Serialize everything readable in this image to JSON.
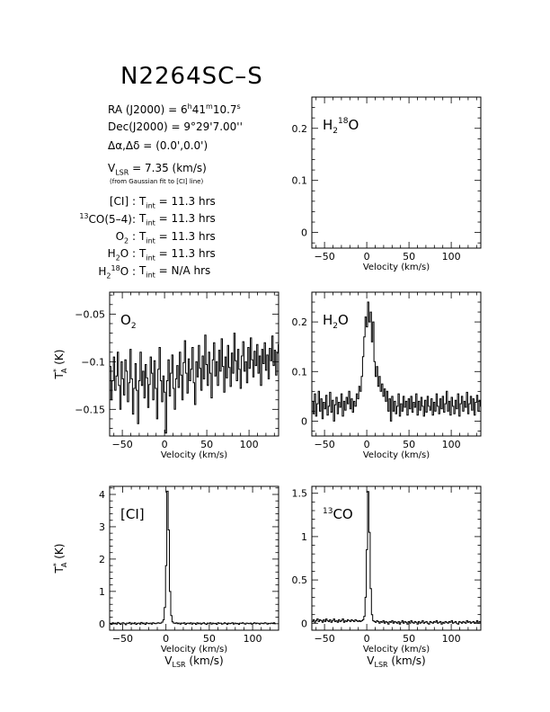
{
  "title": "N2264SC–S",
  "header_info": {
    "ra": {
      "label": "RA (J2000) =",
      "h": "6",
      "m": "41",
      "s": "10.7"
    },
    "dec": {
      "label": "Dec(J2000) =",
      "value": "9°29'7.00''"
    },
    "offset": {
      "label": "Δα,Δδ =",
      "value": "(0.0',0.0')"
    },
    "vlsr": {
      "label_main": "V",
      "label_sub": "LSR",
      "value": "= 7.35 (km/s)"
    },
    "vlsr_note": "(from Gaussian fit to [CI] line)",
    "integrations": [
      {
        "line": "[CI]",
        "tint": "11.3"
      },
      {
        "line": "13CO(5–4)",
        "tint": "11.3"
      },
      {
        "line": "O2",
        "tint": "11.3"
      },
      {
        "line": "H2O",
        "tint": "11.3"
      },
      {
        "line": "H2 18O",
        "tint": "N/A"
      }
    ],
    "tint_label": "T",
    "tint_sub": "int",
    "hrs": "hrs"
  },
  "axis_text": {
    "velocity": "Velocity (km/s)",
    "vlsr": "V",
    "vlsr_sub": "LSR",
    "vlsr_unit": "(km/s)",
    "ta": "T",
    "ta_sup": "*",
    "ta_sub": "A",
    "ta_unit": "(K)"
  },
  "chart_data": [
    {
      "id": "h218o",
      "type": "line",
      "label_main": "H",
      "label_sub": "2",
      "label_sup": "18",
      "label_tail": "O",
      "xlim": [
        -65,
        135
      ],
      "ylim": [
        -0.03,
        0.26
      ],
      "xticks": [
        -50,
        0,
        50,
        100
      ],
      "yticks": [
        0,
        0.1,
        0.2
      ],
      "xlabel": "Velocity (km/s)",
      "ylabel": "",
      "series": []
    },
    {
      "id": "o2",
      "type": "line",
      "label_main": "O",
      "label_sub": "2",
      "xlim": [
        -65,
        135
      ],
      "ylim": [
        -0.178,
        -0.027
      ],
      "xticks": [
        -50,
        0,
        50,
        100
      ],
      "yticks": [
        -0.15,
        -0.1,
        -0.05
      ],
      "xlabel": "Velocity (km/s)",
      "ylabel": "TA* (K)",
      "series": [
        {
          "x_start": -65,
          "x_step": 1.5,
          "values": [
            -0.105,
            -0.14,
            -0.12,
            -0.095,
            -0.13,
            -0.115,
            -0.09,
            -0.125,
            -0.15,
            -0.1,
            -0.118,
            -0.135,
            -0.098,
            -0.11,
            -0.142,
            -0.122,
            -0.087,
            -0.118,
            -0.155,
            -0.128,
            -0.102,
            -0.13,
            -0.165,
            -0.12,
            -0.09,
            -0.125,
            -0.11,
            -0.138,
            -0.103,
            -0.117,
            -0.148,
            -0.124,
            -0.095,
            -0.112,
            -0.14,
            -0.099,
            -0.128,
            -0.16,
            -0.108,
            -0.085,
            -0.12,
            -0.142,
            -0.115,
            -0.132,
            -0.175,
            -0.12,
            -0.098,
            -0.136,
            -0.112,
            -0.093,
            -0.128,
            -0.15,
            -0.118,
            -0.104,
            -0.127,
            -0.09,
            -0.114,
            -0.14,
            -0.101,
            -0.078,
            -0.112,
            -0.133,
            -0.097,
            -0.12,
            -0.108,
            -0.085,
            -0.122,
            -0.145,
            -0.1,
            -0.116,
            -0.083,
            -0.107,
            -0.13,
            -0.094,
            -0.118,
            -0.072,
            -0.103,
            -0.125,
            -0.09,
            -0.112,
            -0.138,
            -0.098,
            -0.08,
            -0.115,
            -0.1,
            -0.125,
            -0.088,
            -0.11,
            -0.076,
            -0.105,
            -0.132,
            -0.095,
            -0.117,
            -0.083,
            -0.106,
            -0.126,
            -0.091,
            -0.112,
            -0.07,
            -0.099,
            -0.12,
            -0.087,
            -0.108,
            -0.128,
            -0.094,
            -0.079,
            -0.11,
            -0.1,
            -0.122,
            -0.085,
            -0.107,
            -0.075,
            -0.098,
            -0.116,
            -0.089,
            -0.104,
            -0.082,
            -0.112,
            -0.094,
            -0.125,
            -0.087,
            -0.102,
            -0.08,
            -0.109,
            -0.093,
            -0.118,
            -0.086,
            -0.099,
            -0.073,
            -0.104,
            -0.088,
            -0.114,
            -0.091,
            -0.082,
            -0.106,
            -0.065
          ]
        }
      ]
    },
    {
      "id": "h2o",
      "type": "line",
      "label_main": "H",
      "label_sub": "2",
      "label_tail": "O",
      "xlim": [
        -65,
        135
      ],
      "ylim": [
        -0.03,
        0.26
      ],
      "xticks": [
        -50,
        0,
        50,
        100
      ],
      "yticks": [
        0,
        0.1,
        0.2
      ],
      "xlabel": "Velocity (km/s)",
      "ylabel": "",
      "series": [
        {
          "x_start": -65,
          "x_step": 1.5,
          "values": [
            0.04,
            0.015,
            0.055,
            0.01,
            0.035,
            0.06,
            0.02,
            0.045,
            0.005,
            0.038,
            0.025,
            0.052,
            0.012,
            0.03,
            0.058,
            0.018,
            0.042,
            0.0,
            0.033,
            0.048,
            0.015,
            0.038,
            0.028,
            0.055,
            0.01,
            0.04,
            0.022,
            0.048,
            0.035,
            0.06,
            0.025,
            0.045,
            0.018,
            0.04,
            0.03,
            0.055,
            0.045,
            0.07,
            0.06,
            0.09,
            0.13,
            0.17,
            0.21,
            0.19,
            0.24,
            0.2,
            0.22,
            0.16,
            0.2,
            0.12,
            0.09,
            0.11,
            0.07,
            0.09,
            0.06,
            0.075,
            0.05,
            0.065,
            0.04,
            0.06,
            0.02,
            0.045,
            0.0,
            0.05,
            0.02,
            0.04,
            0.015,
            0.03,
            0.055,
            0.01,
            0.035,
            0.02,
            0.05,
            0.028,
            0.04,
            0.012,
            0.045,
            0.025,
            0.05,
            0.018,
            0.038,
            0.028,
            0.055,
            0.012,
            0.04,
            0.022,
            0.048,
            0.03,
            0.01,
            0.042,
            0.018,
            0.05,
            0.03,
            0.022,
            0.045,
            0.012,
            0.038,
            0.02,
            0.055,
            0.03,
            0.015,
            0.045,
            0.025,
            0.05,
            0.018,
            0.035,
            0.06,
            0.02,
            0.04,
            0.012,
            0.048,
            0.03,
            0.015,
            0.042,
            0.025,
            0.055,
            0.01,
            0.035,
            0.05,
            0.02,
            0.04,
            0.028,
            0.058,
            0.015,
            0.035,
            0.05,
            0.022,
            0.045,
            0.012,
            0.038,
            0.052,
            0.02,
            0.042,
            0.03
          ]
        }
      ]
    },
    {
      "id": "ci",
      "type": "line",
      "label_main": "[CI]",
      "xlim": [
        -65,
        130
      ],
      "ylim": [
        -0.2,
        4.25
      ],
      "xticks": [
        -50,
        0,
        50,
        100
      ],
      "yticks": [
        0,
        1,
        2,
        3,
        4
      ],
      "xlabel": "Velocity (km/s)",
      "ylabel": "TA* (K)",
      "series": [
        {
          "x_start": -65,
          "x_step": 1.5,
          "values": [
            0.01,
            -0.02,
            0.03,
            0.0,
            0.02,
            -0.01,
            0.04,
            0.01,
            -0.02,
            0.02,
            0.03,
            0.0,
            -0.03,
            0.02,
            0.01,
            0.04,
            -0.01,
            0.02,
            0.0,
            0.03,
            -0.02,
            0.01,
            0.02,
            -0.01,
            0.04,
            0.0,
            0.02,
            -0.02,
            0.03,
            0.01,
            0.0,
            0.02,
            -0.01,
            0.03,
            0.01,
            0.0,
            0.02,
            0.03,
            0.01,
            0.02,
            0.05,
            0.12,
            0.5,
            1.8,
            4.1,
            2.9,
            1.0,
            0.25,
            0.06,
            0.02,
            0.01,
            0.03,
            0.0,
            0.02,
            -0.01,
            0.02,
            0.01,
            0.03,
            -0.02,
            0.01,
            0.02,
            0.0,
            0.03,
            -0.01,
            0.02,
            0.01,
            -0.02,
            0.03,
            0.0,
            0.02,
            -0.01,
            0.01,
            0.03,
            0.0,
            -0.02,
            0.02,
            0.01,
            0.03,
            -0.01,
            0.02,
            0.0,
            0.01,
            -0.02,
            0.03,
            0.01,
            0.02,
            -0.01,
            0.0,
            0.03,
            0.01,
            -0.02,
            0.02,
            0.0,
            0.01,
            0.03,
            -0.01,
            0.02,
            0.0,
            0.01,
            -0.02,
            0.02,
            0.01,
            0.03,
            0.0,
            -0.01,
            0.02,
            0.01,
            0.0,
            0.02,
            -0.01,
            0.01,
            0.03,
            0.0,
            0.02,
            0.01,
            -0.01,
            0.02,
            0.01,
            0.0,
            0.03,
            0.02,
            -0.01,
            0.01,
            0.0,
            0.02,
            0.01,
            0.03,
            0.0
          ]
        }
      ]
    },
    {
      "id": "13co",
      "type": "line",
      "label_main": "CO",
      "label_sup": "13",
      "xlim": [
        -65,
        135
      ],
      "ylim": [
        -0.08,
        1.58
      ],
      "xticks": [
        -50,
        0,
        50,
        100
      ],
      "yticks": [
        0,
        0.5,
        1,
        1.5
      ],
      "xlabel": "Velocity (km/s)",
      "ylabel": "",
      "series": [
        {
          "x_start": -65,
          "x_step": 1.5,
          "values": [
            0.02,
            0.04,
            0.01,
            0.03,
            0.05,
            0.02,
            0.04,
            0.03,
            0.01,
            0.04,
            0.02,
            0.05,
            0.03,
            0.02,
            0.04,
            0.01,
            0.03,
            0.05,
            0.02,
            0.03,
            0.01,
            0.04,
            0.02,
            0.03,
            0.05,
            0.01,
            0.03,
            0.02,
            0.04,
            0.03,
            0.02,
            0.04,
            0.03,
            0.02,
            0.04,
            0.03,
            0.02,
            0.03,
            0.02,
            0.03,
            0.04,
            0.08,
            0.3,
            0.85,
            1.52,
            1.05,
            0.4,
            0.1,
            0.03,
            0.02,
            0.01,
            0.03,
            0.02,
            0.0,
            0.02,
            0.01,
            0.03,
            0.0,
            0.02,
            0.01,
            -0.01,
            0.02,
            0.01,
            0.03,
            0.0,
            0.02,
            0.01,
            0.0,
            0.02,
            -0.01,
            0.01,
            0.03,
            0.0,
            0.02,
            0.01,
            -0.01,
            0.02,
            0.0,
            0.03,
            0.01,
            0.0,
            0.02,
            0.01,
            -0.01,
            0.02,
            0.0,
            0.01,
            0.03,
            0.0,
            0.01,
            0.02,
            0.0,
            -0.01,
            0.02,
            0.01,
            0.0,
            0.02,
            0.01,
            0.03,
            0.0,
            0.01,
            0.02,
            -0.01,
            0.01,
            0.0,
            0.02,
            0.01,
            0.0,
            0.02,
            0.01,
            0.03,
            0.0,
            0.01,
            0.02,
            0.0,
            -0.01,
            0.02,
            0.01,
            0.0,
            0.02,
            0.01,
            0.0,
            0.03,
            0.01,
            0.02,
            0.0,
            0.01,
            0.02,
            0.0,
            0.01,
            0.03,
            0.0,
            0.02,
            0.01
          ]
        }
      ]
    }
  ]
}
